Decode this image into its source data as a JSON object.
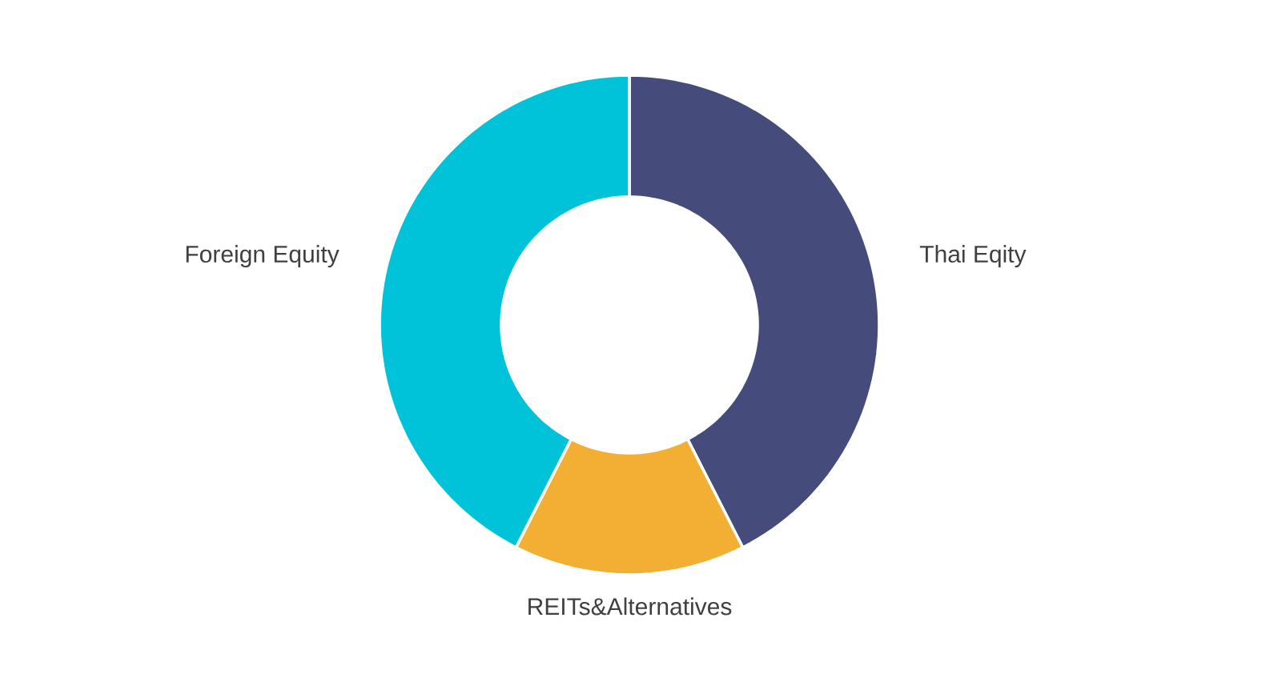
{
  "chart_data": {
    "type": "donut",
    "categories": [
      "Thai Eqity",
      "REITs&Alternatives",
      "Foreign Equity"
    ],
    "values": [
      42.5,
      15,
      42.5
    ],
    "colors": [
      "#454b7a",
      "#f2af34",
      "#00c3d9"
    ]
  }
}
